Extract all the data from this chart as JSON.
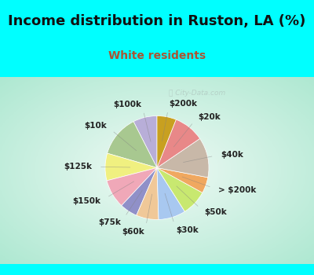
{
  "title": "Income distribution in Ruston, LA (%)",
  "subtitle": "White residents",
  "title_color": "#111111",
  "subtitle_color": "#aa5533",
  "bg_cyan": "#00ffff",
  "watermark": "ⓘ City-Data.com",
  "labels": [
    "$100k",
    "$10k",
    "$125k",
    "$150k",
    "$75k",
    "$60k",
    "$30k",
    "$50k",
    "> $200k",
    "$40k",
    "$20k",
    "$200k"
  ],
  "values": [
    7.5,
    13.0,
    8.5,
    9.0,
    5.5,
    7.0,
    8.5,
    8.0,
    5.0,
    12.5,
    9.5,
    6.0
  ],
  "colors": [
    "#b8aed8",
    "#a8c890",
    "#f0f080",
    "#f0a8b8",
    "#9090c8",
    "#f0c898",
    "#a8c8f0",
    "#c8e870",
    "#f0a860",
    "#c8b8a8",
    "#e88888",
    "#c8a020"
  ],
  "startangle": 90,
  "label_fontsize": 7.5,
  "title_fontsize": 13,
  "subtitle_fontsize": 10
}
